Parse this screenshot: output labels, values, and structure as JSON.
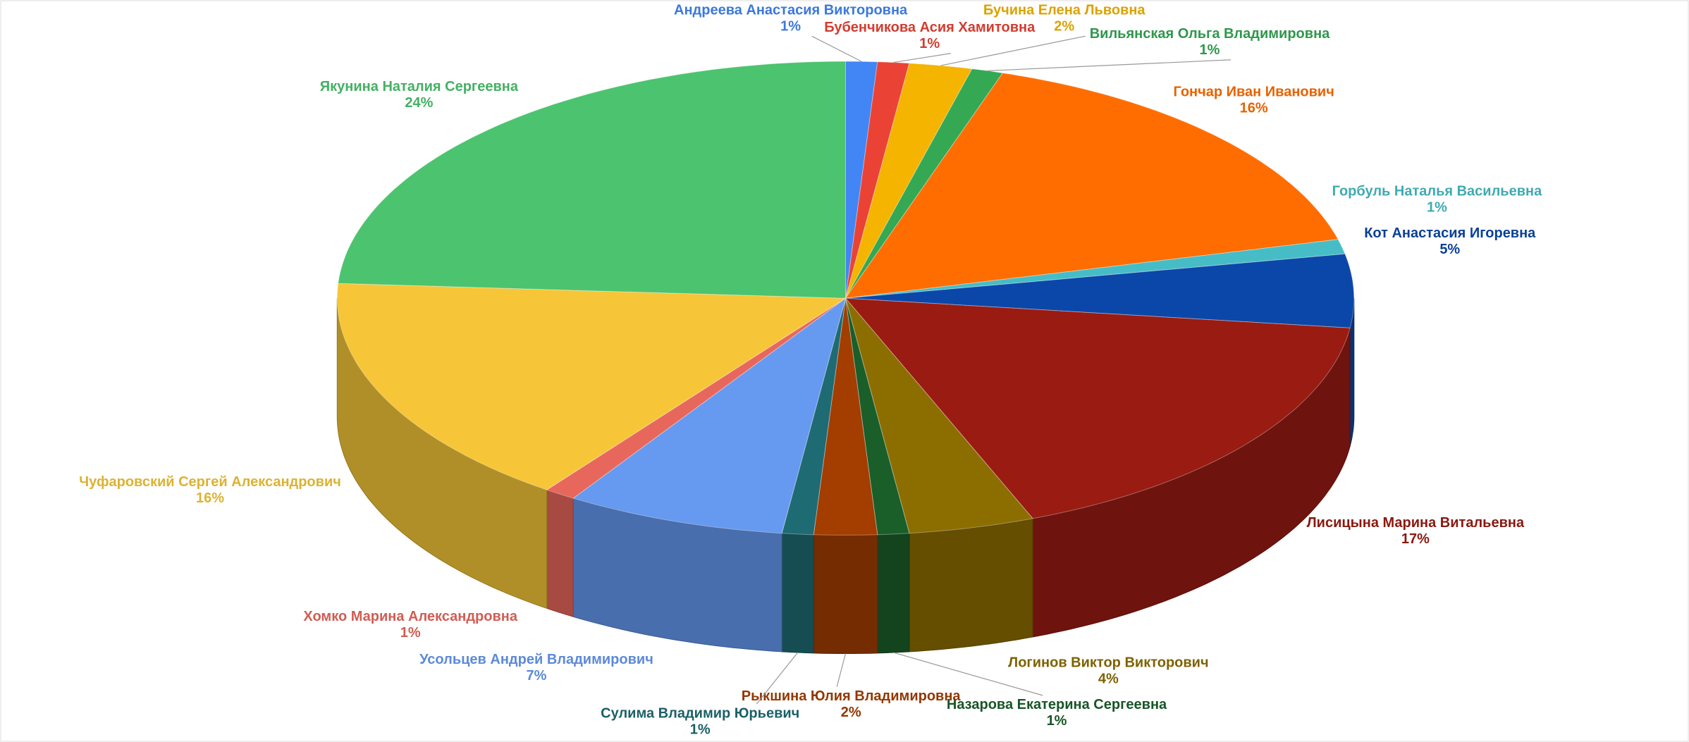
{
  "chart_data": {
    "type": "pie3d",
    "categories": [
      "Андреева Анастасия Викторовна",
      "Бубенчикова Асия Хамитовна",
      "Бучина Елена Львовна",
      "Вильянская Ольга Владимировна",
      "Гончар Иван Иванович",
      "Горбуль Наталья Васильевна",
      "Кот Анастасия Игоревна",
      "Лисицына Марина Витальевна",
      "Логинов Виктор Викторович",
      "Назарова Екатерина Сергеевна",
      "Рыкшина Юлия Владимировна",
      "Сулима Владимир Юрьевич",
      "Усольцев Андрей Владимирович",
      "Хомко Марина Александровна",
      "Чуфаровский Сергей Александрович",
      "Якунина Наталия Сергеевна"
    ],
    "values": [
      1,
      1,
      2,
      1,
      16,
      1,
      5,
      17,
      4,
      1,
      2,
      1,
      7,
      1,
      16,
      24
    ],
    "value_labels": [
      "1%",
      "1%",
      "2%",
      "1%",
      "16%",
      "1%",
      "5%",
      "17%",
      "4%",
      "1%",
      "2%",
      "1%",
      "7%",
      "1%",
      "16%",
      "24%"
    ],
    "colors": [
      "#4285f4",
      "#ea4335",
      "#f4b400",
      "#34a853",
      "#ff6d00",
      "#46bdc6",
      "#0b47a8",
      "#991b12",
      "#8c6d00",
      "#1a5e2a",
      "#a33d00",
      "#1e6b73",
      "#6699f0",
      "#e8675c",
      "#f6c638",
      "#4cc36f"
    ]
  }
}
